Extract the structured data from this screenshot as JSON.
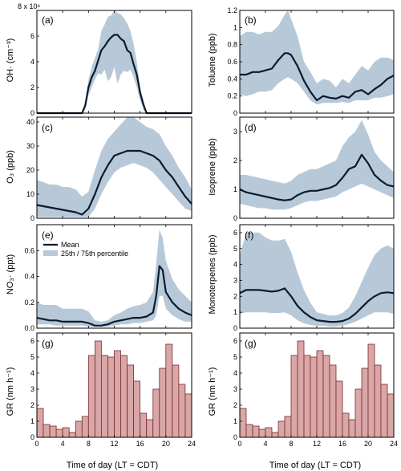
{
  "colors": {
    "band": "#b7c9d8",
    "mean": "#0b1a2e",
    "bar_fill": "#d9a7a7",
    "bar_edge": "#7a2a2a"
  },
  "legend": {
    "mean": "Mean",
    "band": "25th / 75th percentile"
  },
  "chart_data": [
    {
      "panel": "(a)",
      "type": "area",
      "ylabel": "OH· (cm⁻³)",
      "xlim": [
        0,
        24
      ],
      "ylim": [
        0,
        8
      ],
      "y_multiplier": "x 10⁶",
      "yticks": [
        0,
        2,
        4,
        6,
        8
      ],
      "x": [
        0,
        6,
        7,
        7.5,
        8,
        8.5,
        9,
        9.5,
        10,
        10.5,
        11,
        11.5,
        12,
        12.5,
        13,
        13.5,
        14,
        14.5,
        15,
        15.5,
        16,
        16.5,
        17,
        18,
        24
      ],
      "mean": [
        0,
        0,
        0,
        0.6,
        2.0,
        2.8,
        3.3,
        4.1,
        4.9,
        5.2,
        5.6,
        5.9,
        6.1,
        6.1,
        5.8,
        5.6,
        4.9,
        4.7,
        3.8,
        3.0,
        1.6,
        0.7,
        0,
        0,
        0
      ],
      "p25": [
        0,
        0,
        0,
        0.3,
        1.4,
        2.0,
        2.6,
        3.1,
        3.0,
        3.4,
        2.5,
        2.8,
        3.6,
        2.3,
        3.0,
        3.3,
        3.2,
        3.4,
        2.8,
        2.0,
        1.0,
        0.3,
        0,
        0,
        0
      ],
      "p75": [
        0,
        0,
        0,
        0.9,
        2.6,
        3.6,
        4.3,
        5.0,
        6.4,
        6.9,
        7.5,
        7.6,
        8.0,
        7.8,
        7.7,
        7.4,
        7.0,
        6.4,
        5.4,
        4.0,
        2.0,
        1.0,
        0,
        0,
        0
      ]
    },
    {
      "panel": "(b)",
      "type": "area",
      "ylabel": "Toluene (ppb)",
      "xlim": [
        0,
        24
      ],
      "ylim": [
        0,
        1.2
      ],
      "yticks": [
        0,
        0.2,
        0.4,
        0.6,
        0.8,
        1.0,
        1.2
      ],
      "x": [
        0,
        1,
        2,
        3,
        4,
        5,
        6,
        7,
        7.5,
        8,
        9,
        10,
        11,
        12,
        13,
        14,
        15,
        16,
        17,
        18,
        19,
        20,
        21,
        22,
        23,
        24
      ],
      "mean": [
        0.45,
        0.45,
        0.48,
        0.48,
        0.5,
        0.52,
        0.62,
        0.7,
        0.7,
        0.68,
        0.55,
        0.38,
        0.25,
        0.15,
        0.2,
        0.18,
        0.17,
        0.2,
        0.18,
        0.25,
        0.27,
        0.22,
        0.28,
        0.33,
        0.4,
        0.44
      ],
      "p25": [
        0.22,
        0.2,
        0.22,
        0.25,
        0.25,
        0.27,
        0.35,
        0.4,
        0.42,
        0.4,
        0.35,
        0.25,
        0.15,
        0.1,
        0.12,
        0.12,
        0.12,
        0.13,
        0.12,
        0.15,
        0.15,
        0.15,
        0.18,
        0.18,
        0.2,
        0.22
      ],
      "p75": [
        0.9,
        0.95,
        0.95,
        0.92,
        0.95,
        0.95,
        1.02,
        1.15,
        1.2,
        1.1,
        0.9,
        0.6,
        0.48,
        0.35,
        0.4,
        0.38,
        0.3,
        0.4,
        0.35,
        0.45,
        0.55,
        0.5,
        0.6,
        0.65,
        0.65,
        0.62
      ]
    },
    {
      "panel": "(c)",
      "type": "area",
      "ylabel": "O₃ (ppb)",
      "xlim": [
        0,
        24
      ],
      "ylim": [
        0,
        42
      ],
      "yticks": [
        0,
        10,
        20,
        30,
        40
      ],
      "x": [
        0,
        1,
        2,
        3,
        4,
        5,
        6,
        7,
        8,
        9,
        10,
        11,
        12,
        13,
        14,
        15,
        16,
        17,
        18,
        19,
        20,
        21,
        22,
        23,
        24
      ],
      "mean": [
        5.5,
        5,
        4.5,
        4,
        3.5,
        3,
        2.5,
        1.5,
        4,
        10,
        17,
        22,
        26,
        27,
        28,
        28,
        28,
        27,
        26,
        24,
        20,
        17,
        13,
        9,
        6
      ],
      "p25": [
        0.5,
        0.5,
        0.5,
        0.5,
        0.5,
        0.5,
        0.5,
        0.5,
        0.5,
        4,
        10,
        15,
        19,
        21,
        22,
        23,
        22,
        21,
        19,
        16,
        13,
        10,
        7,
        4,
        3
      ],
      "p75": [
        16,
        15,
        14,
        14,
        13,
        13,
        12,
        9,
        11,
        20,
        28,
        33,
        36,
        39,
        42,
        42,
        40,
        38,
        37,
        35,
        30,
        26,
        21,
        17,
        12
      ]
    },
    {
      "panel": "(d)",
      "type": "area",
      "ylabel": "Isoprene (ppb)",
      "xlim": [
        0,
        24
      ],
      "ylim": [
        0,
        3.5
      ],
      "yticks": [
        0,
        1,
        2,
        3
      ],
      "x": [
        0,
        1,
        2,
        3,
        4,
        5,
        6,
        7,
        8,
        9,
        10,
        11,
        12,
        13,
        14,
        15,
        16,
        17,
        18,
        19,
        20,
        21,
        22,
        23,
        24
      ],
      "mean": [
        1.0,
        0.9,
        0.85,
        0.8,
        0.75,
        0.7,
        0.65,
        0.62,
        0.65,
        0.8,
        0.9,
        0.95,
        0.95,
        1.0,
        1.05,
        1.15,
        1.4,
        1.7,
        1.8,
        2.2,
        1.9,
        1.5,
        1.3,
        1.15,
        1.1
      ],
      "p25": [
        0.5,
        0.45,
        0.4,
        0.35,
        0.35,
        0.3,
        0.3,
        0.3,
        0.35,
        0.45,
        0.55,
        0.6,
        0.6,
        0.65,
        0.7,
        0.75,
        0.9,
        1.0,
        1.1,
        1.2,
        1.1,
        1.0,
        0.9,
        0.8,
        0.7
      ],
      "p75": [
        1.5,
        1.5,
        1.45,
        1.4,
        1.35,
        1.3,
        1.25,
        1.2,
        1.3,
        1.5,
        1.6,
        1.7,
        1.7,
        1.8,
        1.9,
        2.0,
        2.5,
        2.8,
        3.0,
        3.4,
        2.9,
        2.3,
        2.0,
        1.8,
        1.6
      ]
    },
    {
      "panel": "(e)",
      "type": "area",
      "ylabel": "NO₃· (ppt)",
      "xlim": [
        0,
        24
      ],
      "ylim": [
        0,
        0.8
      ],
      "x": [
        0,
        1,
        2,
        3,
        4,
        5,
        6,
        7,
        8,
        9,
        10,
        11,
        12,
        13,
        14,
        15,
        16,
        17,
        18,
        18.5,
        19,
        19.5,
        20,
        21,
        22,
        23,
        24
      ],
      "mean": [
        0.08,
        0.07,
        0.06,
        0.06,
        0.05,
        0.05,
        0.05,
        0.05,
        0.04,
        0.02,
        0.02,
        0.03,
        0.05,
        0.06,
        0.07,
        0.08,
        0.08,
        0.09,
        0.12,
        0.25,
        0.48,
        0.45,
        0.28,
        0.2,
        0.15,
        0.12,
        0.1
      ],
      "p25": [
        0.03,
        0.03,
        0.03,
        0.02,
        0.02,
        0.02,
        0.02,
        0.02,
        0.01,
        0.01,
        0.01,
        0.01,
        0.02,
        0.03,
        0.03,
        0.04,
        0.04,
        0.05,
        0.06,
        0.1,
        0.25,
        0.25,
        0.15,
        0.1,
        0.07,
        0.05,
        0.05
      ],
      "p75": [
        0.2,
        0.18,
        0.18,
        0.18,
        0.15,
        0.15,
        0.15,
        0.15,
        0.13,
        0.06,
        0.05,
        0.06,
        0.1,
        0.12,
        0.15,
        0.17,
        0.18,
        0.2,
        0.28,
        0.5,
        0.76,
        0.7,
        0.52,
        0.38,
        0.3,
        0.25,
        0.2
      ]
    },
    {
      "panel": "(f)",
      "type": "area",
      "ylabel": "Monoterpenes (ppb)",
      "xlim": [
        0,
        24
      ],
      "ylim": [
        0,
        6.5
      ],
      "yticks": [
        0,
        1,
        2,
        3,
        4,
        5,
        6
      ],
      "x": [
        0,
        1,
        2,
        3,
        4,
        5,
        6,
        7,
        8,
        9,
        10,
        11,
        12,
        13,
        14,
        15,
        16,
        17,
        18,
        19,
        20,
        21,
        22,
        23,
        24
      ],
      "mean": [
        2.2,
        2.4,
        2.4,
        2.4,
        2.35,
        2.3,
        2.35,
        2.5,
        2.0,
        1.4,
        1.0,
        0.7,
        0.5,
        0.45,
        0.4,
        0.4,
        0.45,
        0.6,
        0.9,
        1.3,
        1.7,
        2.0,
        2.2,
        2.25,
        2.2
      ],
      "p25": [
        0.9,
        1.0,
        1.0,
        1.0,
        1.0,
        0.95,
        0.95,
        1.0,
        0.8,
        0.5,
        0.3,
        0.2,
        0.15,
        0.15,
        0.1,
        0.1,
        0.15,
        0.25,
        0.4,
        0.6,
        0.8,
        1.0,
        1.0,
        1.0,
        0.9
      ],
      "p75": [
        4.6,
        6.0,
        6.0,
        6.0,
        5.7,
        5.5,
        5.5,
        5.6,
        4.8,
        3.5,
        2.4,
        1.6,
        1.0,
        0.9,
        0.8,
        0.8,
        0.95,
        1.3,
        2.0,
        2.9,
        3.8,
        4.6,
        5.0,
        5.2,
        5.0
      ]
    },
    {
      "panel": "(g)",
      "type": "bar",
      "ylabel": "GR (nm h⁻¹)",
      "xlim": [
        0,
        24
      ],
      "ylim": [
        0,
        6.5
      ],
      "yticks": [
        0,
        1,
        2,
        3,
        4,
        5,
        6
      ],
      "bin_width": 1,
      "bin_starts": [
        0,
        1,
        2,
        3,
        4,
        5,
        6,
        7,
        8,
        9,
        10,
        11,
        12,
        13,
        14,
        15,
        16,
        17,
        18,
        19,
        20,
        21,
        22,
        23
      ],
      "values": [
        1.8,
        0.8,
        0.7,
        0.5,
        0.6,
        0.3,
        1.0,
        1.3,
        5.1,
        6.0,
        5.1,
        5.0,
        5.4,
        5.1,
        4.5,
        3.5,
        1.5,
        1.1,
        3.0,
        4.3,
        5.8,
        4.5,
        3.3,
        2.7
      ]
    },
    {
      "panel": "(g)",
      "type": "bar",
      "ylabel": "GR (nm h⁻¹)",
      "xlim": [
        0,
        24
      ],
      "ylim": [
        0,
        6.5
      ],
      "yticks": [
        0,
        1,
        2,
        3,
        4,
        5,
        6
      ],
      "bin_width": 1,
      "bin_starts": [
        0,
        1,
        2,
        3,
        4,
        5,
        6,
        7,
        8,
        9,
        10,
        11,
        12,
        13,
        14,
        15,
        16,
        17,
        18,
        19,
        20,
        21,
        22,
        23
      ],
      "values": [
        1.8,
        0.8,
        0.7,
        0.5,
        0.6,
        0.3,
        1.0,
        1.3,
        5.1,
        6.0,
        5.1,
        5.0,
        5.4,
        5.1,
        4.5,
        3.5,
        1.5,
        1.1,
        3.0,
        4.3,
        5.8,
        4.5,
        3.3,
        2.7
      ]
    }
  ],
  "xticks": [
    0,
    4,
    8,
    12,
    16,
    20,
    24
  ],
  "x_axis_label": "Time of day (LT = CDT)",
  "axis_labels": {
    "a": "OH· (cm⁻³)",
    "b": "Toluene (ppb)",
    "c": "O₃ (ppb)",
    "d": "Isoprene (ppb)",
    "e": "NO₃· (ppt)",
    "f": "Monoterpenes (ppb)",
    "g_left": "GR (nm h⁻¹)",
    "g_right": "GR (nm h⁻¹)"
  },
  "panel_labels": {
    "a": "(a)",
    "b": "(b)",
    "c": "(c)",
    "d": "(d)",
    "e": "(e)",
    "f": "(f)",
    "g_left": "(g)",
    "g_right": "(g)"
  },
  "y_multiplier_a": "8 x 10⁶",
  "e_yticks": [
    "0.0",
    "0.2",
    "0.4",
    "0.6",
    ""
  ],
  "x_tick_labels": [
    "0",
    "4",
    "8",
    "12",
    "16",
    "20",
    "24"
  ]
}
